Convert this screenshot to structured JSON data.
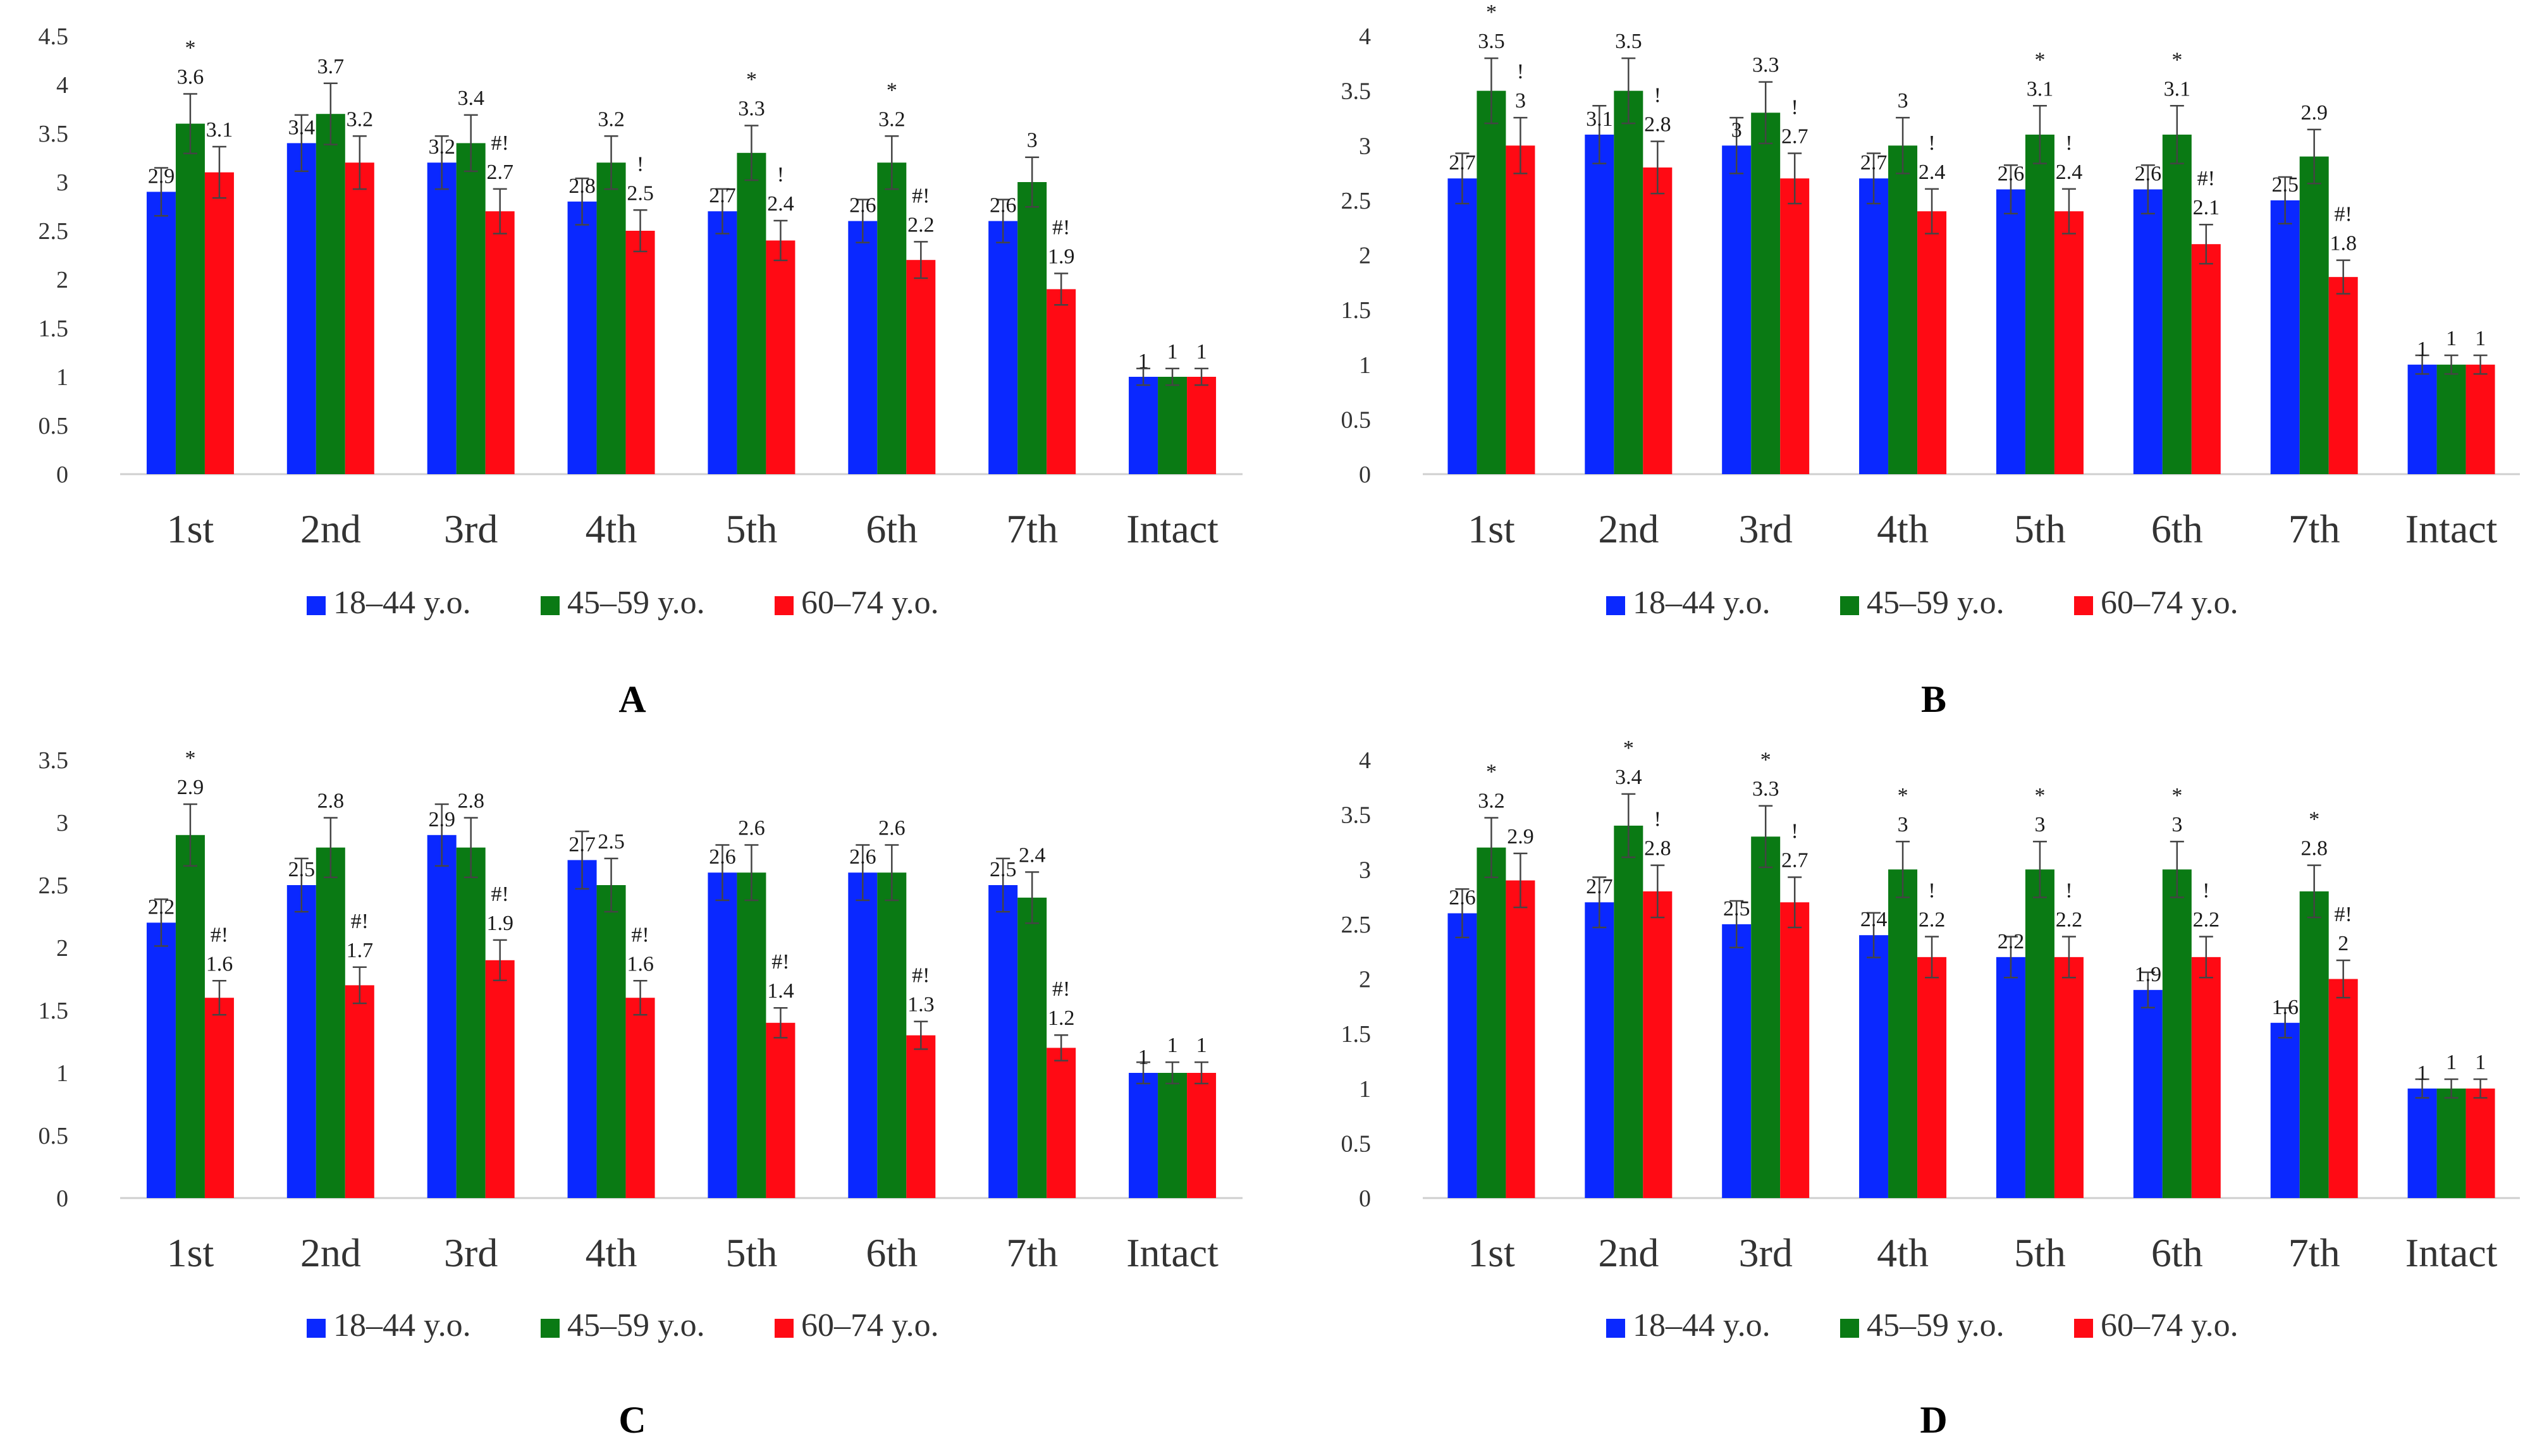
{
  "figure": {
    "legend": [
      "18–44 y.o.",
      "45–59 y.o.",
      "60–74 y.o."
    ],
    "colors": [
      "#0a28ff",
      "#0a7a14",
      "#ff0a14"
    ]
  },
  "chart_data": [
    {
      "type": "bar",
      "panel": "A",
      "categories": [
        "1st",
        "2nd",
        "3rd",
        "4th",
        "5th",
        "6th",
        "7th",
        "Intact"
      ],
      "ylim": [
        0,
        4.5
      ],
      "yticks": [
        "0",
        "0.5",
        "1",
        "1.5",
        "2",
        "2.5",
        "3",
        "3.5",
        "4",
        "4.5"
      ],
      "series": [
        {
          "name": "18–44 y.o.",
          "color": "#0a28ff",
          "values": [
            2.9,
            3.4,
            3.2,
            2.8,
            2.7,
            2.6,
            2.6,
            1
          ],
          "labels": [
            "2.9",
            "3.4",
            "3.2",
            "2.8",
            "2.7",
            "2.6",
            "2.6",
            "1"
          ],
          "marks": [
            "",
            "",
            "",
            "",
            "",
            "",
            "",
            ""
          ]
        },
        {
          "name": "45–59 y.o.",
          "color": "#0a7a14",
          "values": [
            3.6,
            3.7,
            3.4,
            3.2,
            3.3,
            3.2,
            3,
            1
          ],
          "labels": [
            "3.6",
            "3.7",
            "3.4",
            "3.2",
            "3.3",
            "3.2",
            "3",
            "1"
          ],
          "marks": [
            "*",
            "",
            "",
            "",
            "*",
            "*",
            "",
            ""
          ]
        },
        {
          "name": "60–74 y.o.",
          "color": "#ff0a14",
          "values": [
            3.1,
            3.2,
            2.7,
            2.5,
            2.4,
            2.2,
            1.9,
            1
          ],
          "labels": [
            "3.1",
            "3.2",
            "2.7",
            "2.5",
            "2.4",
            "2.2",
            "1.9",
            "1"
          ],
          "marks": [
            "",
            "",
            "#!",
            "!",
            "!",
            "#!",
            "#!",
            ""
          ]
        }
      ]
    },
    {
      "type": "bar",
      "panel": "B",
      "categories": [
        "1st",
        "2nd",
        "3rd",
        "4th",
        "5th",
        "6th",
        "7th",
        "Intact"
      ],
      "ylim": [
        0,
        4
      ],
      "yticks": [
        "0",
        "0.5",
        "1",
        "1.5",
        "2",
        "2.5",
        "3",
        "3.5",
        "4"
      ],
      "series": [
        {
          "name": "18–44 y.o.",
          "color": "#0a28ff",
          "values": [
            2.7,
            3.1,
            3,
            2.7,
            2.6,
            2.6,
            2.5,
            1
          ],
          "labels": [
            "2.7",
            "3.1",
            "3",
            "2.7",
            "2.6",
            "2.6",
            "2.5",
            "1"
          ],
          "marks": [
            "",
            "",
            "",
            "",
            "",
            "",
            "",
            ""
          ]
        },
        {
          "name": "45–59 y.o.",
          "color": "#0a7a14",
          "values": [
            3.5,
            3.5,
            3.3,
            3,
            3.1,
            3.1,
            2.9,
            1
          ],
          "labels": [
            "3.5",
            "3.5",
            "3.3",
            "3",
            "3.1",
            "3.1",
            "2.9",
            "1"
          ],
          "marks": [
            "*",
            "",
            "",
            "",
            "*",
            "*",
            "",
            ""
          ]
        },
        {
          "name": "60–74 y.o.",
          "color": "#ff0a14",
          "values": [
            3,
            2.8,
            2.7,
            2.4,
            2.4,
            2.1,
            1.8,
            1
          ],
          "labels": [
            "3",
            "2.8",
            "2.7",
            "2.4",
            "2.4",
            "2.1",
            "1.8",
            "1"
          ],
          "marks": [
            "!",
            "!",
            "!",
            "!",
            "!",
            "#!",
            "#!",
            ""
          ]
        }
      ]
    },
    {
      "type": "bar",
      "panel": "C",
      "categories": [
        "1st",
        "2nd",
        "3rd",
        "4th",
        "5th",
        "6th",
        "7th",
        "Intact"
      ],
      "ylim": [
        0,
        3.5
      ],
      "yticks": [
        "0",
        "0.5",
        "1",
        "1.5",
        "2",
        "2.5",
        "3",
        "3.5"
      ],
      "series": [
        {
          "name": "18–44 y.o.",
          "color": "#0a28ff",
          "values": [
            2.2,
            2.5,
            2.9,
            2.7,
            2.6,
            2.6,
            2.5,
            1
          ],
          "labels": [
            "2.2",
            "2.5",
            "2.9",
            "2.7",
            "2.6",
            "2.6",
            "2.5",
            "1"
          ],
          "marks": [
            "",
            "",
            "",
            "",
            "",
            "",
            "",
            ""
          ]
        },
        {
          "name": "45–59 y.o.",
          "color": "#0a7a14",
          "values": [
            2.9,
            2.8,
            2.8,
            2.5,
            2.6,
            2.6,
            2.4,
            1
          ],
          "labels": [
            "2.9",
            "2.8",
            "2.8",
            "2.5",
            "2.6",
            "2.6",
            "2.4",
            "1"
          ],
          "marks": [
            "*",
            "",
            "",
            "",
            "",
            "",
            "",
            ""
          ]
        },
        {
          "name": "60–74 y.o.",
          "color": "#ff0a14",
          "values": [
            1.6,
            1.7,
            1.9,
            1.6,
            1.4,
            1.3,
            1.2,
            1
          ],
          "labels": [
            "1.6",
            "1.7",
            "1.9",
            "1.6",
            "1.4",
            "1.3",
            "1.2",
            "1"
          ],
          "marks": [
            "#!",
            "#!",
            "#!",
            "#!",
            "#!",
            "#!",
            "#!",
            ""
          ]
        }
      ]
    },
    {
      "type": "bar",
      "panel": "D",
      "categories": [
        "1st",
        "2nd",
        "3rd",
        "4th",
        "5th",
        "6th",
        "7th",
        "Intact"
      ],
      "ylim": [
        0,
        4
      ],
      "yticks": [
        "0",
        "0.5",
        "1",
        "1.5",
        "2",
        "2.5",
        "3",
        "3.5",
        "4"
      ],
      "series": [
        {
          "name": "18–44 y.o.",
          "color": "#0a28ff",
          "values": [
            2.6,
            2.7,
            2.5,
            2.4,
            2.2,
            1.9,
            1.6,
            1
          ],
          "labels": [
            "2.6",
            "2.7",
            "2.5",
            "2.4",
            "2.2",
            "1.9",
            "1.6",
            "1"
          ],
          "marks": [
            "",
            "",
            "",
            "",
            "",
            "",
            "",
            ""
          ]
        },
        {
          "name": "45–59 y.o.",
          "color": "#0a7a14",
          "values": [
            3.2,
            3.4,
            3.3,
            3,
            3,
            3,
            2.8,
            1
          ],
          "labels": [
            "3.2",
            "3.4",
            "3.3",
            "3",
            "3",
            "3",
            "2.8",
            "1"
          ],
          "marks": [
            "*",
            "*",
            "*",
            "*",
            "*",
            "*",
            "*",
            ""
          ]
        },
        {
          "name": "60–74 y.o.",
          "color": "#ff0a14",
          "values": [
            2.9,
            2.8,
            2.7,
            2.2,
            2.2,
            2.2,
            2,
            1
          ],
          "labels": [
            "2.9",
            "2.8",
            "2.7",
            "2.2",
            "2.2",
            "2.2",
            "2",
            "1"
          ],
          "marks": [
            "",
            "!",
            "!",
            "!",
            "!",
            "!",
            "#!",
            ""
          ]
        }
      ]
    }
  ]
}
